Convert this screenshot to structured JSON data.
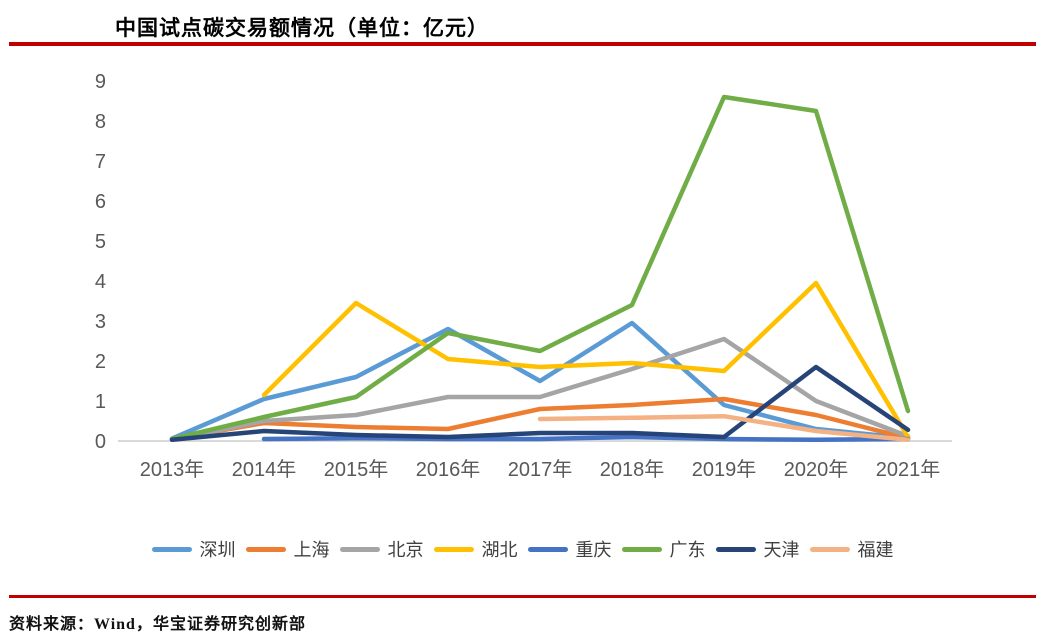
{
  "title": "中国试点碳交易额情况（单位：亿元）",
  "source": "资料来源：Wind，华宝证券研究创新部",
  "accent_color": "#C00000",
  "axis_color": "#595959",
  "chart_data": {
    "type": "line",
    "title": "中国试点碳交易额情况（单位：亿元）",
    "categories": [
      "2013年",
      "2014年",
      "2015年",
      "2016年",
      "2017年",
      "2018年",
      "2019年",
      "2020年",
      "2021年"
    ],
    "xlabel": "",
    "ylabel": "",
    "ylim": [
      0,
      9
    ],
    "ytick_step": 1,
    "grid": false,
    "legend_position": "bottom",
    "series": [
      {
        "name": "深圳",
        "color": "#5B9BD5",
        "values": [
          0.06,
          1.05,
          1.6,
          2.8,
          1.5,
          2.95,
          0.9,
          0.3,
          0.07
        ]
      },
      {
        "name": "上海",
        "color": "#ED7D31",
        "values": [
          0.05,
          0.45,
          0.35,
          0.3,
          0.8,
          0.9,
          1.05,
          0.65,
          0.07
        ]
      },
      {
        "name": "北京",
        "color": "#A5A5A5",
        "values": [
          0.03,
          0.5,
          0.65,
          1.1,
          1.1,
          1.8,
          2.55,
          1.0,
          0.12
        ]
      },
      {
        "name": "湖北",
        "color": "#FFC000",
        "values": [
          null,
          1.15,
          3.45,
          2.05,
          1.85,
          1.95,
          1.75,
          3.95,
          0.1
        ]
      },
      {
        "name": "重庆",
        "color": "#4472C4",
        "values": [
          null,
          0.05,
          0.07,
          0.05,
          0.05,
          0.1,
          0.05,
          0.03,
          0.05
        ]
      },
      {
        "name": "广东",
        "color": "#70AD47",
        "values": [
          0.05,
          0.6,
          1.1,
          2.7,
          2.25,
          3.4,
          8.6,
          8.25,
          0.75
        ]
      },
      {
        "name": "天津",
        "color": "#264478",
        "values": [
          0.03,
          0.25,
          0.15,
          0.1,
          0.2,
          0.2,
          0.1,
          1.85,
          0.28
        ]
      },
      {
        "name": "福建",
        "color": "#F4B183",
        "values": [
          null,
          null,
          null,
          null,
          0.55,
          0.58,
          0.62,
          0.25,
          0.03
        ]
      }
    ]
  }
}
